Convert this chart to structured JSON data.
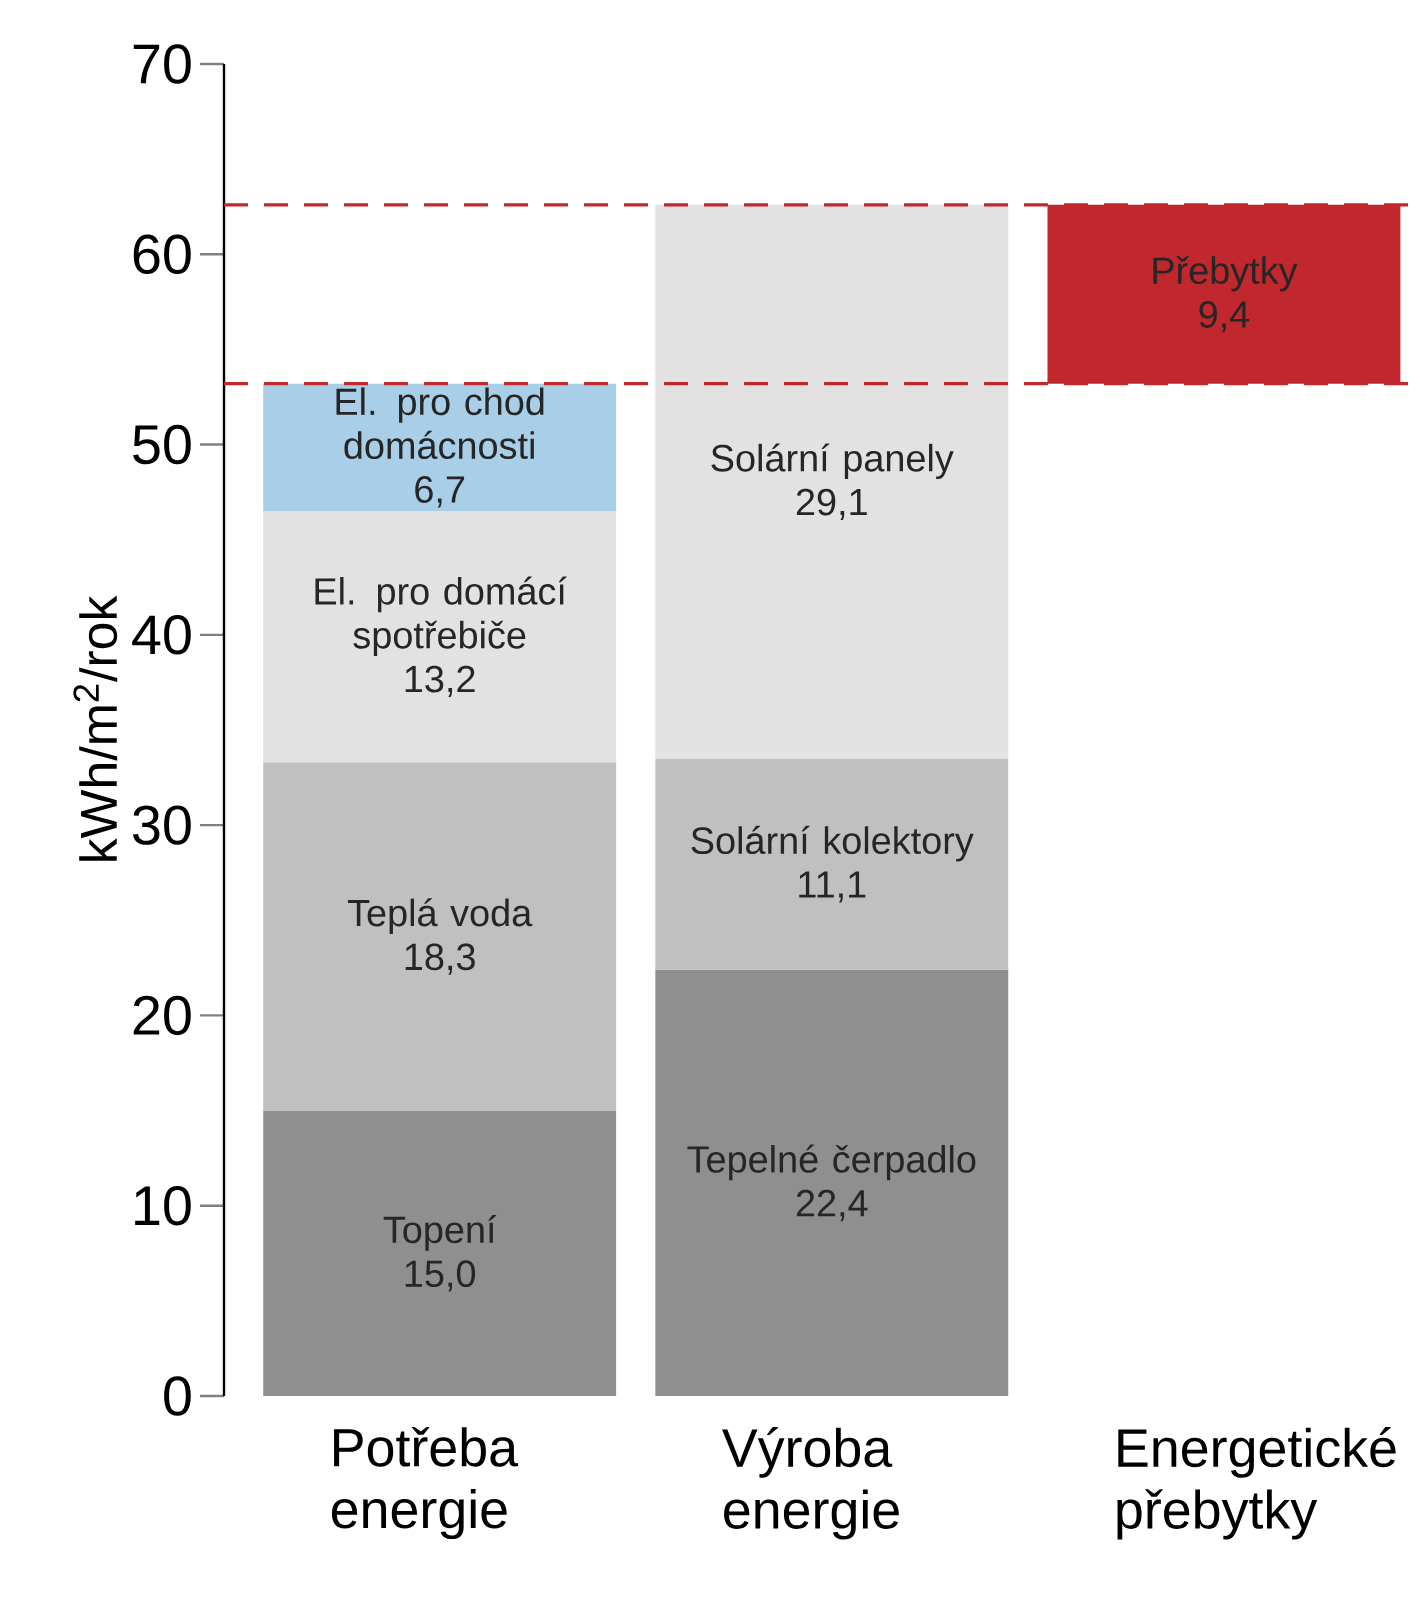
{
  "chart_data": {
    "type": "bar",
    "stacked": true,
    "ylabel": "kWh/m$^{2}$/rok",
    "categories": [
      "Potřeba energie",
      "Výroba energie",
      "Energetické přebytky"
    ],
    "ylim": [
      0,
      70
    ],
    "yticks": [
      0,
      10,
      20,
      30,
      40,
      50,
      60,
      70
    ],
    "series": [
      {
        "name": "Topení",
        "color": "#8f8f8f",
        "values": [
          15.0,
          null,
          null
        ],
        "value_labels": [
          "15,0",
          null,
          null
        ]
      },
      {
        "name": "Teplá voda",
        "color": "#c0c0c0",
        "values": [
          18.3,
          null,
          null
        ],
        "value_labels": [
          "18,3",
          null,
          null
        ]
      },
      {
        "name": "El. pro domácí spotřebiče",
        "color": "#e2e2e2",
        "values": [
          13.2,
          null,
          null
        ],
        "value_labels": [
          "13,2",
          null,
          null
        ]
      },
      {
        "name": "El. pro chod domácnosti",
        "color": "#a9cfe8",
        "values": [
          6.7,
          null,
          null
        ],
        "value_labels": [
          "6,7",
          null,
          null
        ]
      },
      {
        "name": "Tepelné čerpadlo",
        "color": "#8f8f8f",
        "values": [
          null,
          22.4,
          null
        ],
        "value_labels": [
          null,
          "22,4",
          null
        ]
      },
      {
        "name": "Solární kolektory",
        "color": "#c0c0c0",
        "values": [
          null,
          11.1,
          null
        ],
        "value_labels": [
          null,
          "11,1",
          null
        ]
      },
      {
        "name": "Solární panely",
        "color": "#e2e2e2",
        "values": [
          null,
          29.1,
          null
        ],
        "value_labels": [
          null,
          "29,1",
          null
        ]
      },
      {
        "name": "Přebytky",
        "color": "#c0282d",
        "values": [
          null,
          null,
          9.4
        ],
        "base": [
          null,
          null,
          53.2
        ],
        "value_labels": [
          null,
          null,
          "9,4"
        ]
      }
    ],
    "ref_lines": [
      {
        "axis": "y",
        "value": 53.2,
        "color": "#c0282d",
        "line_style": "dashed"
      },
      {
        "axis": "y",
        "value": 62.6,
        "color": "#c0282d",
        "line_style": "dashed"
      }
    ]
  }
}
